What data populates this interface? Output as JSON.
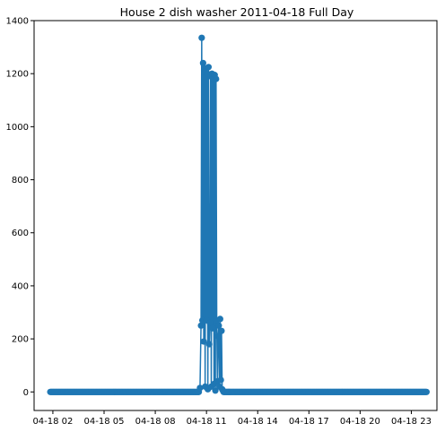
{
  "chart_data": {
    "type": "line",
    "title": "House 2 dish washer 2011-04-18 Full Day",
    "xlabel": "",
    "ylabel": "",
    "ylim": [
      -70,
      1400
    ],
    "xlim": [
      0.9,
      24.5
    ],
    "yticks": [
      0,
      200,
      400,
      600,
      800,
      1000,
      1200,
      1400
    ],
    "xticks": [
      2,
      5,
      8,
      11,
      14,
      17,
      20,
      23
    ],
    "xtick_labels": [
      "04-18 02",
      "04-18 05",
      "04-18 08",
      "04-18 11",
      "04-18 14",
      "04-18 17",
      "04-18 20",
      "04-18 23"
    ],
    "marker": "circle",
    "color": "#1f77b4",
    "grid": false,
    "baseline_range": [
      1.85,
      23.9
    ],
    "series": [
      {
        "name": "",
        "x": [
          10.55,
          10.62,
          10.68,
          10.72,
          10.76,
          10.8,
          10.84,
          10.88,
          10.92,
          10.96,
          11.0,
          11.04,
          11.08,
          11.12,
          11.16,
          11.2,
          11.24,
          11.28,
          11.32,
          11.36,
          11.4,
          11.44,
          11.48,
          11.52,
          11.56,
          11.6,
          11.64,
          11.68,
          11.72,
          11.76,
          11.8,
          11.84,
          11.88,
          11.92,
          11.96,
          12.0,
          12.04,
          12.08,
          12.12,
          12.16,
          12.2,
          12.24,
          12.28,
          12.32
        ],
        "y": [
          0,
          15,
          250,
          1335,
          270,
          1240,
          190,
          1220,
          20,
          1210,
          270,
          1200,
          10,
          1225,
          180,
          260,
          1190,
          20,
          1200,
          240,
          1180,
          30,
          1195,
          5,
          1180,
          270,
          40,
          210,
          250,
          20,
          275,
          45,
          230,
          10,
          5,
          0,
          0,
          0,
          0,
          0,
          0,
          0,
          0,
          0
        ]
      }
    ]
  }
}
